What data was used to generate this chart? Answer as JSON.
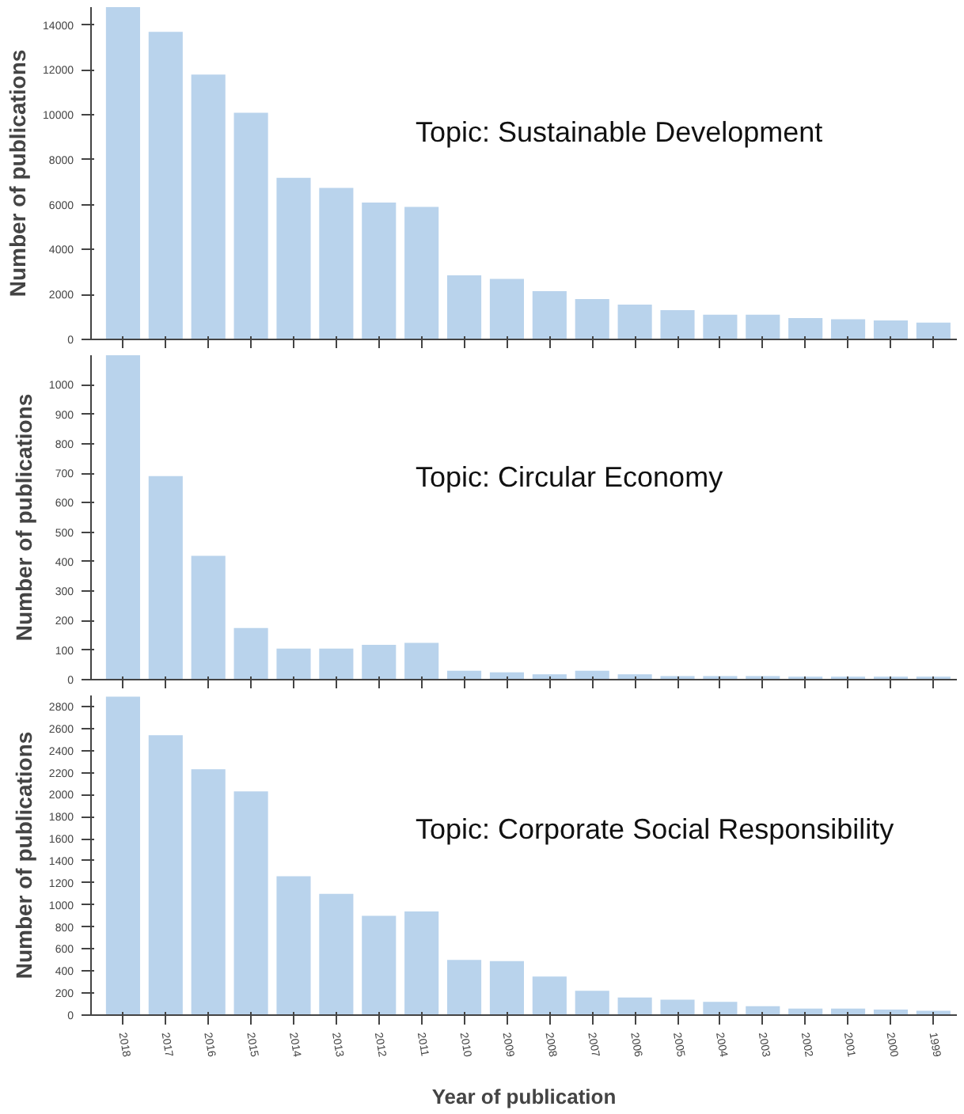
{
  "chart_data": [
    {
      "type": "bar",
      "categories": [
        "2018",
        "2017",
        "2016",
        "2015",
        "2014",
        "2013",
        "2012",
        "2011",
        "2010",
        "2009",
        "2008",
        "2007",
        "2006",
        "2005",
        "2004",
        "2003",
        "2002",
        "2001",
        "2000",
        "1999"
      ],
      "ylabel": "Number of publications",
      "annotations": [
        "Topic: Sustainable Development"
      ],
      "color": "#b9d3ec",
      "ylim": [
        0,
        14800
      ],
      "yticks": [
        0,
        2000,
        4000,
        6000,
        8000,
        10000,
        12000,
        14000
      ],
      "tick_labels": "y",
      "values": [
        14800,
        13700,
        11800,
        10100,
        7200,
        6750,
        6100,
        5900,
        2850,
        2700,
        2150,
        1800,
        1550,
        1300,
        1100,
        1100,
        950,
        900,
        850,
        750
      ]
    },
    {
      "type": "bar",
      "categories": [
        "2018",
        "2017",
        "2016",
        "2015",
        "2014",
        "2013",
        "2012",
        "2011",
        "2010",
        "2009",
        "2008",
        "2007",
        "2006",
        "2005",
        "2004",
        "2003",
        "2002",
        "2001",
        "2000",
        "1999"
      ],
      "ylabel": "Number of publications",
      "annotations": [
        "Topic: Circular Economy"
      ],
      "color": "#b9d3ec",
      "ylim": [
        0,
        1100
      ],
      "yticks": [
        0,
        100,
        200,
        300,
        400,
        500,
        600,
        700,
        800,
        900,
        1000
      ],
      "tick_labels": "y",
      "values": [
        1100,
        690,
        420,
        175,
        105,
        105,
        118,
        125,
        30,
        25,
        18,
        30,
        18,
        12,
        12,
        12,
        10,
        10,
        10,
        10
      ]
    },
    {
      "type": "bar",
      "categories": [
        "2018",
        "2017",
        "2016",
        "2015",
        "2014",
        "2013",
        "2012",
        "2011",
        "2010",
        "2009",
        "2008",
        "2007",
        "2006",
        "2005",
        "2004",
        "2003",
        "2002",
        "2001",
        "2000",
        "1999"
      ],
      "xlabel": "Year of publication",
      "ylabel": "Number of publications",
      "annotations": [
        "Topic: Corporate Social Responsibility"
      ],
      "color": "#b9d3ec",
      "ylim": [
        0,
        2900
      ],
      "yticks": [
        0,
        200,
        400,
        600,
        800,
        1000,
        1200,
        1400,
        1600,
        1800,
        2000,
        2200,
        2400,
        2600,
        2800
      ],
      "values": [
        2890,
        2540,
        2230,
        2030,
        1260,
        1100,
        900,
        940,
        500,
        490,
        350,
        220,
        160,
        140,
        120,
        80,
        60,
        60,
        50,
        40
      ]
    }
  ]
}
